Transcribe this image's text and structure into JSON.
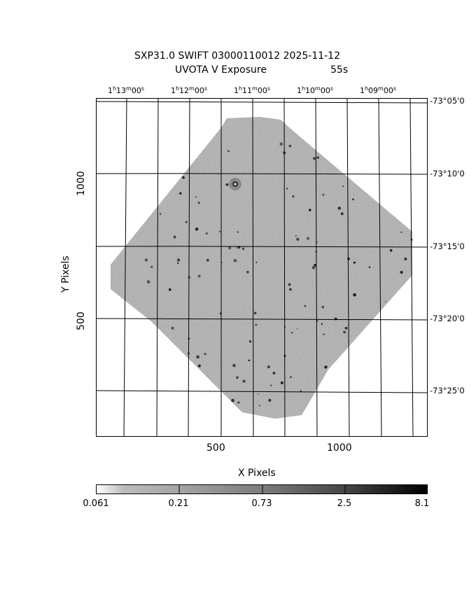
{
  "title": {
    "line1": "SXP31.0 SWIFT 03000110012 2025-11-12",
    "line2_left": "UVOTA V Exposure",
    "line2_right": "55s"
  },
  "axes": {
    "xlabel": "X Pixels",
    "ylabel": "Y Pixels",
    "x_ticks": [
      "500",
      "1000"
    ],
    "y_ticks": [
      "1000",
      "500"
    ],
    "ra_ticks": [
      {
        "h": "1",
        "m": "13",
        "s": "00"
      },
      {
        "h": "1",
        "m": "12",
        "s": "00"
      },
      {
        "h": "1",
        "m": "11",
        "s": "00"
      },
      {
        "h": "1",
        "m": "10",
        "s": "00"
      },
      {
        "h": "1",
        "m": "09",
        "s": "00"
      }
    ],
    "dec_ticks": [
      "-73°05'0",
      "-73°10'0",
      "-73°15'0",
      "-73°20'0",
      "-73°25'0"
    ]
  },
  "colorbar": {
    "ticks": [
      "0.061",
      "0.21",
      "0.73",
      "2.5",
      "8.1"
    ]
  },
  "colors": {
    "field": "#9a9a9a",
    "background": "#ffffff",
    "grid": "#000000"
  }
}
